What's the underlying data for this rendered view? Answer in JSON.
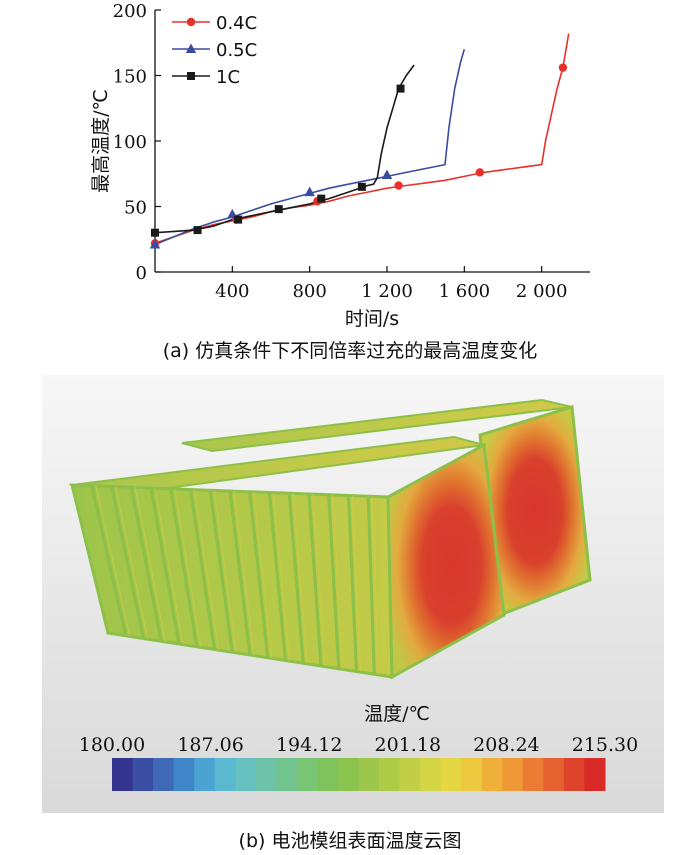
{
  "chart_data": [
    {
      "type": "line",
      "xlabel": "时间/s",
      "ylabel": "最高温度/℃",
      "xlim": [
        0,
        2250
      ],
      "ylim": [
        0,
        200
      ],
      "xticks": [
        {
          "v": 400,
          "label": "400"
        },
        {
          "v": 800,
          "label": "800"
        },
        {
          "v": 1200,
          "label": "1 200"
        },
        {
          "v": 1600,
          "label": "1 600"
        },
        {
          "v": 2000,
          "label": "2 000"
        }
      ],
      "yticks": [
        {
          "v": 0,
          "label": "0"
        },
        {
          "v": 50,
          "label": "50"
        },
        {
          "v": 100,
          "label": "100"
        },
        {
          "v": 150,
          "label": "150"
        },
        {
          "v": 200,
          "label": "200"
        }
      ],
      "legend_position": "top-left",
      "series": [
        {
          "name": "0.4C",
          "color": "#e8312a",
          "marker": "circle",
          "x": [
            0,
            100,
            200,
            300,
            400,
            500,
            600,
            700,
            800,
            900,
            1000,
            1100,
            1200,
            1300,
            1400,
            1500,
            1600,
            1700,
            1800,
            1900,
            2000,
            2020,
            2050,
            2080,
            2110,
            2140
          ],
          "y": [
            22,
            27,
            32,
            36,
            39,
            42,
            46,
            49,
            51,
            54,
            58,
            61,
            64,
            66,
            68,
            70,
            73,
            76,
            78,
            80,
            82,
            100,
            120,
            140,
            156,
            182
          ],
          "markers_x": [
            0,
            420,
            840,
            1260,
            1680,
            2110
          ],
          "markers_y": [
            22,
            40,
            54,
            66,
            76,
            156
          ]
        },
        {
          "name": "0.5C",
          "color": "#3a4c9f",
          "marker": "triangle",
          "x": [
            0,
            100,
            200,
            300,
            400,
            500,
            600,
            700,
            800,
            900,
            1000,
            1100,
            1200,
            1300,
            1400,
            1500,
            1520,
            1550,
            1580,
            1600
          ],
          "y": [
            21,
            27,
            33,
            38,
            42,
            47,
            52,
            56,
            60,
            64,
            67,
            70,
            73,
            76,
            79,
            82,
            110,
            140,
            160,
            170
          ],
          "markers_x": [
            0,
            400,
            800,
            1200
          ],
          "markers_y": [
            21,
            44,
            61,
            74
          ]
        },
        {
          "name": "1C",
          "color": "#1a1a1a",
          "marker": "square",
          "x": [
            0,
            100,
            200,
            300,
            400,
            500,
            600,
            700,
            800,
            900,
            1000,
            1100,
            1130,
            1150,
            1170,
            1200,
            1230,
            1260,
            1300,
            1340
          ],
          "y": [
            30,
            31,
            32,
            35,
            40,
            43,
            46,
            49,
            52,
            56,
            61,
            66,
            67,
            72,
            90,
            110,
            125,
            140,
            150,
            158
          ],
          "markers_x": [
            0,
            220,
            430,
            640,
            860,
            1070,
            1270
          ],
          "markers_y": [
            30,
            32,
            40,
            48,
            56,
            65,
            140
          ]
        }
      ]
    },
    {
      "type": "heatmap",
      "colorbar_label": "温度/℃",
      "colorbar_ticks": [
        "180.00",
        "187.06",
        "194.12",
        "201.18",
        "208.24",
        "215.30"
      ],
      "colorbar_range": [
        180.0,
        215.3
      ],
      "colorbar_colors": [
        "#35358f",
        "#3a4fa3",
        "#3f68b7",
        "#3f86c8",
        "#4aa3d3",
        "#5ab8d1",
        "#66c0c0",
        "#6cc3a9",
        "#72c48e",
        "#78c574",
        "#7fc35c",
        "#8bc34f",
        "#9cc74a",
        "#aecb47",
        "#c0cf45",
        "#d3d544",
        "#e4d743",
        "#eec83f",
        "#efb03a",
        "#ee9836",
        "#ea7d33",
        "#e5612f",
        "#df452c",
        "#d82b28"
      ],
      "surface_colors": {
        "face": "#bbc74b",
        "edge": "#8dc049",
        "groove": "#a7c64c",
        "hotspot": "#d8362e",
        "warm": "#e0732f"
      }
    }
  ],
  "captions": {
    "a": "(a)  仿真条件下不同倍率过充的最高温度变化",
    "b": "(b)  电池模组表面温度云图"
  }
}
